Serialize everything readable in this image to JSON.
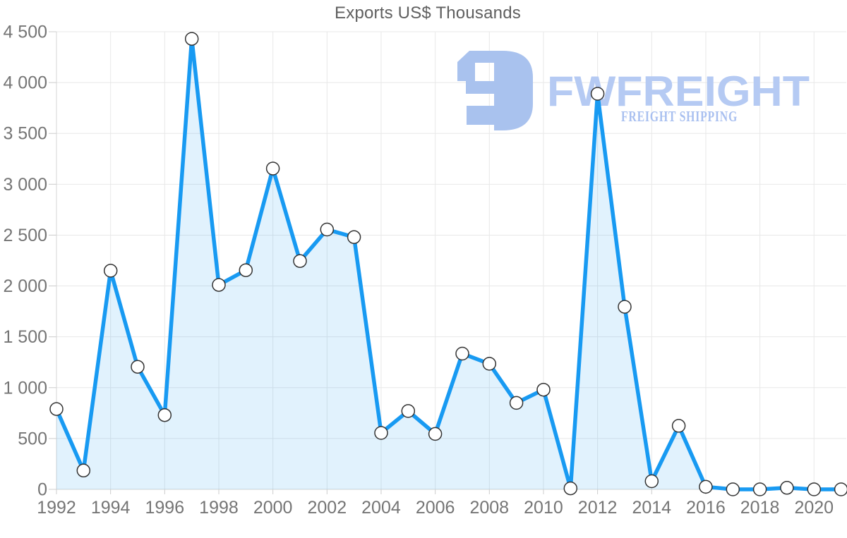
{
  "title": "Exports US$ Thousands",
  "watermark": {
    "brand": "FWFREIGHT",
    "tagline": "FREIGHT SHIPPING",
    "logo_color": "#a9c2ee",
    "brand_color": "#b5caf3",
    "tagline_color": "#a9c0f0"
  },
  "colors": {
    "line": "#189af2",
    "area_fill": "rgba(24, 154, 242, 0.13)",
    "marker_fill": "#ffffff",
    "marker_stroke": "#333333",
    "grid": "#e8e8e8",
    "axis": "#d4d4d4",
    "tick": "#cccccc",
    "label": "#757575",
    "title": "#5f5f5f"
  },
  "chart_data": {
    "type": "area",
    "title": "Exports US$ Thousands",
    "x": [
      1992,
      1993,
      1994,
      1995,
      1996,
      1997,
      1998,
      1999,
      2000,
      2001,
      2002,
      2003,
      2004,
      2005,
      2006,
      2007,
      2008,
      2009,
      2010,
      2011,
      2012,
      2013,
      2014,
      2015,
      2016,
      2017,
      2018,
      2019,
      2020,
      2021
    ],
    "values": [
      790,
      185,
      2150,
      1205,
      730,
      4430,
      2010,
      2155,
      3155,
      2245,
      2555,
      2480,
      555,
      770,
      545,
      1335,
      1235,
      850,
      980,
      10,
      3890,
      1795,
      80,
      625,
      25,
      0,
      0,
      15,
      0,
      0
    ],
    "xlabel": "",
    "ylabel": "",
    "ylim": [
      0,
      4500
    ],
    "y_tick_step": 500,
    "y_tick_labels": [
      "0",
      "500",
      "1 000",
      "1 500",
      "2 000",
      "2 500",
      "3 000",
      "3 500",
      "4 000",
      "4 500"
    ],
    "x_tick_labels": [
      "1992",
      "1994",
      "1996",
      "1998",
      "2000",
      "2002",
      "2004",
      "2006",
      "2008",
      "2010",
      "2012",
      "2014",
      "2016",
      "2018",
      "2020"
    ],
    "x_tick_step": 2,
    "grid": true,
    "legend": false,
    "markers": true
  }
}
